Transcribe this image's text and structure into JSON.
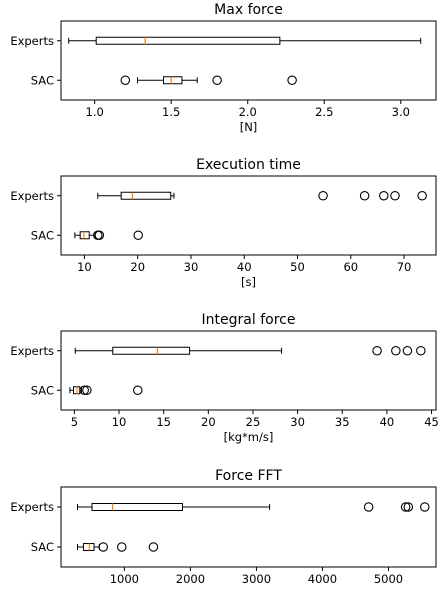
{
  "chart_data": [
    {
      "type": "boxplot",
      "orientation": "horizontal",
      "title": "Max force",
      "xlabel": "[N]",
      "xlim": [
        0.78,
        3.23
      ],
      "xticks": [
        1.0,
        1.5,
        2.0,
        2.5,
        3.0
      ],
      "xtick_labels": [
        "1.0",
        "1.5",
        "2.0",
        "2.5",
        "3.0"
      ],
      "categories": [
        "Experts",
        "SAC"
      ],
      "boxes": [
        {
          "label": "Experts",
          "whislo": 0.83,
          "q1": 1.01,
          "med": 1.33,
          "q3": 2.21,
          "whishi": 3.13,
          "fliers": []
        },
        {
          "label": "SAC",
          "whislo": 1.28,
          "q1": 1.45,
          "med": 1.5,
          "q3": 1.57,
          "whishi": 1.67,
          "fliers": [
            1.2,
            1.8,
            2.29
          ]
        }
      ]
    },
    {
      "type": "boxplot",
      "orientation": "horizontal",
      "title": "Execution time",
      "xlabel": "[s]",
      "xlim": [
        5.6,
        76.0
      ],
      "xticks": [
        10,
        20,
        30,
        40,
        50,
        60,
        70
      ],
      "xtick_labels": [
        "10",
        "20",
        "30",
        "40",
        "50",
        "60",
        "70"
      ],
      "categories": [
        "Experts",
        "SAC"
      ],
      "boxes": [
        {
          "label": "Experts",
          "whislo": 12.5,
          "q1": 16.9,
          "med": 19.0,
          "q3": 26.2,
          "whishi": 26.8,
          "fliers": [
            54.8,
            62.6,
            66.2,
            68.3,
            73.4
          ]
        },
        {
          "label": "SAC",
          "whislo": 8.2,
          "q1": 9.2,
          "med": 9.9,
          "q3": 10.9,
          "whishi": 12.0,
          "fliers": [
            12.5,
            12.8,
            20.1
          ]
        }
      ]
    },
    {
      "type": "boxplot",
      "orientation": "horizontal",
      "title": "Integral force",
      "xlabel": "[kg*m/s]",
      "xlim": [
        3.5,
        45.5
      ],
      "xticks": [
        5,
        10,
        15,
        20,
        25,
        30,
        35,
        40,
        45
      ],
      "xtick_labels": [
        "5",
        "10",
        "15",
        "20",
        "25",
        "30",
        "35",
        "40",
        "45"
      ],
      "categories": [
        "Experts",
        "SAC"
      ],
      "boxes": [
        {
          "label": "Experts",
          "whislo": 5.1,
          "q1": 9.3,
          "med": 14.3,
          "q3": 17.9,
          "whishi": 28.2,
          "fliers": [
            38.9,
            41.0,
            42.3,
            43.8
          ]
        },
        {
          "label": "SAC",
          "whislo": 4.5,
          "q1": 4.9,
          "med": 5.3,
          "q3": 5.6,
          "whishi": 5.8,
          "fliers": [
            6.1,
            6.4,
            12.1
          ]
        }
      ]
    },
    {
      "type": "boxplot",
      "orientation": "horizontal",
      "title": "Force FFT",
      "xlabel": "",
      "xlim": [
        40,
        5720
      ],
      "xticks": [
        1000,
        2000,
        3000,
        4000,
        5000
      ],
      "xtick_labels": [
        "1000",
        "2000",
        "3000",
        "4000",
        "5000"
      ],
      "categories": [
        "Experts",
        "SAC"
      ],
      "boxes": [
        {
          "label": "Experts",
          "whislo": 290,
          "q1": 510,
          "med": 820,
          "q3": 1880,
          "whishi": 3200,
          "fliers": [
            4700,
            5260,
            5300,
            5550
          ]
        },
        {
          "label": "SAC",
          "whislo": 290,
          "q1": 380,
          "med": 470,
          "q3": 540,
          "whishi": 620,
          "fliers": [
            680,
            960,
            1440
          ]
        }
      ]
    }
  ],
  "colors": {
    "median": "#ff7f0e",
    "box": "#000000",
    "background": "#ffffff"
  }
}
